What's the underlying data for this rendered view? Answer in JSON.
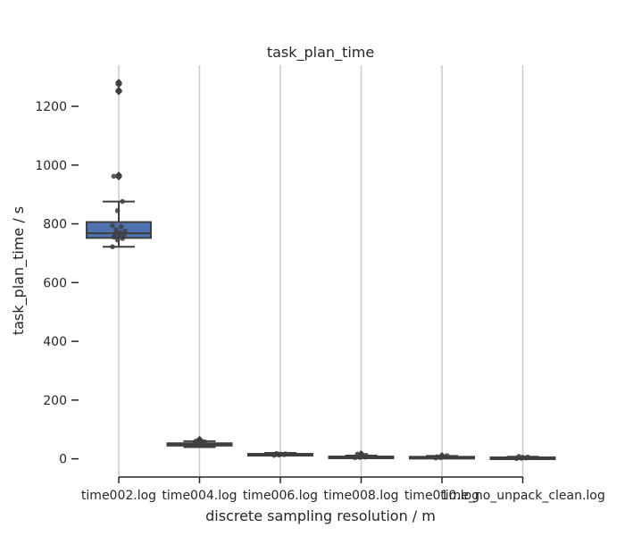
{
  "chart_data": {
    "type": "box",
    "title": "task_plan_time",
    "xlabel": "discrete sampling resolution / m",
    "ylabel": "task_plan_time / s",
    "ylim": [
      -62,
      1340
    ],
    "yticks": [
      0,
      200,
      400,
      600,
      800,
      1000,
      1200
    ],
    "grid": "vertical",
    "categories": [
      "time002.log",
      "time004.log",
      "time006.log",
      "time008.log",
      "time010.log",
      "time_no_unpack_clean.log"
    ],
    "boxes": [
      {
        "category": "time002.log",
        "whisker_low": 722,
        "q1": 752,
        "median": 768,
        "q3": 806,
        "whisker_high": 876,
        "outliers": [
          960,
          966,
          1250,
          1255,
          1275,
          1282
        ]
      },
      {
        "category": "time004.log",
        "whisker_low": 40,
        "q1": 45,
        "median": 49,
        "q3": 53,
        "whisker_high": 60,
        "outliers": [
          66
        ]
      },
      {
        "category": "time006.log",
        "whisker_low": 11,
        "q1": 13,
        "median": 15,
        "q3": 17,
        "whisker_high": 20,
        "outliers": []
      },
      {
        "category": "time008.log",
        "whisker_low": 3,
        "q1": 5,
        "median": 7,
        "q3": 8,
        "whisker_high": 11,
        "outliers": [
          17
        ]
      },
      {
        "category": "time010.log",
        "whisker_low": 2,
        "q1": 4,
        "median": 6,
        "q3": 7,
        "whisker_high": 10,
        "outliers": [
          11
        ]
      },
      {
        "category": "time_no_unpack_clean.log",
        "whisker_low": 1,
        "q1": 2,
        "median": 4,
        "q3": 5,
        "whisker_high": 7,
        "outliers": []
      }
    ],
    "points": [
      [
        722,
        745,
        750,
        755,
        758,
        762,
        766,
        770,
        775,
        780,
        790,
        793,
        845,
        876,
        962,
        1252
      ],
      [
        45,
        48,
        50,
        52,
        55,
        58,
        60,
        62
      ],
      [
        12,
        13,
        14,
        15,
        16,
        17,
        18
      ],
      [
        4,
        5,
        6,
        7,
        9,
        12,
        16
      ],
      [
        3,
        4,
        6,
        7,
        9,
        11
      ],
      [
        1,
        2,
        3,
        4,
        5,
        6,
        8
      ]
    ],
    "colors": {
      "box_fill": "#4c72b0",
      "line": "#3f3f3f",
      "grid": "#cccccc",
      "text": "#262626"
    }
  }
}
